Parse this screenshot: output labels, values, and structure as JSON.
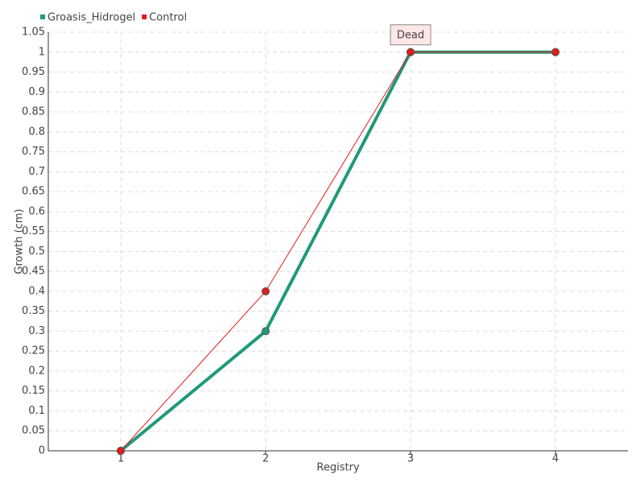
{
  "chart_data": {
    "type": "line",
    "x_label": "Registry",
    "y_label": "Growth (cm)",
    "categories": [
      "1",
      "2",
      "3",
      "4"
    ],
    "series": [
      {
        "name": "Groasis_Hidrogel",
        "color": "#1f9a78",
        "values": [
          0,
          0.3,
          1,
          1
        ]
      },
      {
        "name": "Control",
        "color": "#e31a1c",
        "values": [
          0,
          0.4,
          1,
          1
        ]
      }
    ],
    "annotations": [
      {
        "label": "Dead",
        "category": "3",
        "value": 1
      }
    ],
    "ylim": [
      0,
      1.05
    ],
    "yticks": [
      0,
      0.05,
      0.1,
      0.15,
      0.2,
      0.25,
      0.3,
      0.35,
      0.4,
      0.45,
      0.5,
      0.55,
      0.6,
      0.65,
      0.7,
      0.75,
      0.8,
      0.85,
      0.9,
      0.95,
      1,
      1.05
    ],
    "grid": true,
    "legend": "top-left"
  }
}
